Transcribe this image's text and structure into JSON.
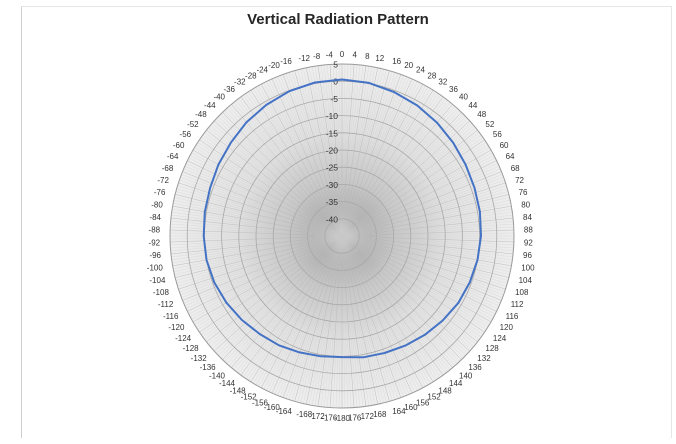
{
  "chart_data": {
    "type": "polar-line",
    "title": "Vertical Radiation Pattern",
    "angle_labels": [
      "0",
      "4",
      "8",
      "12",
      "16",
      "20",
      "24",
      "28",
      "32",
      "36",
      "40",
      "44",
      "48",
      "52",
      "56",
      "60",
      "64",
      "68",
      "72",
      "76",
      "80",
      "84",
      "88",
      "92",
      "96",
      "100",
      "104",
      "108",
      "112",
      "116",
      "120",
      "124",
      "128",
      "132",
      "136",
      "140",
      "144",
      "148",
      "152",
      "156",
      "160",
      "164",
      "168",
      "172",
      "176",
      "-180",
      "-176",
      "-172",
      "-168",
      "-164",
      "-160",
      "-156",
      "-152",
      "-148",
      "-144",
      "-140",
      "-136",
      "-132",
      "-128",
      "-124",
      "-120",
      "-116",
      "-112",
      "-108",
      "-104",
      "-100",
      "-96",
      "-92",
      "-88",
      "-84",
      "-80",
      "-76",
      "-72",
      "-68",
      "-64",
      "-60",
      "-56",
      "-52",
      "-48",
      "-44",
      "-40",
      "-36",
      "-32",
      "-28",
      "-24",
      "-20",
      "-16",
      "-12",
      "-8",
      "-4"
    ],
    "radial_labels": [
      "5",
      "0",
      "-5",
      "-10",
      "-15",
      "-20",
      "-25",
      "-30",
      "-35",
      "-40"
    ],
    "radial_range": [
      -45,
      5
    ],
    "series": [
      {
        "color": "#4472c4",
        "angles": [
          0,
          10,
          20,
          30,
          40,
          50,
          60,
          70,
          80,
          90,
          100,
          110,
          120,
          130,
          140,
          150,
          160,
          170,
          180,
          190,
          200,
          210,
          220,
          230,
          240,
          250,
          260,
          270,
          280,
          290,
          300,
          310,
          320,
          330,
          340,
          350
        ],
        "values": [
          0.5,
          0.2,
          -0.5,
          -1.2,
          -2.0,
          -2.8,
          -3.5,
          -4.0,
          -4.3,
          -4.6,
          -5.0,
          -5.5,
          -6.0,
          -6.8,
          -7.5,
          -8.2,
          -8.8,
          -9.2,
          -9.8,
          -9.5,
          -9.0,
          -8.3,
          -7.8,
          -7.0,
          -6.2,
          -5.5,
          -5.0,
          -4.8,
          -4.5,
          -4.2,
          -3.5,
          -2.8,
          -1.8,
          -1.0,
          -0.2,
          0.3
        ]
      }
    ]
  }
}
